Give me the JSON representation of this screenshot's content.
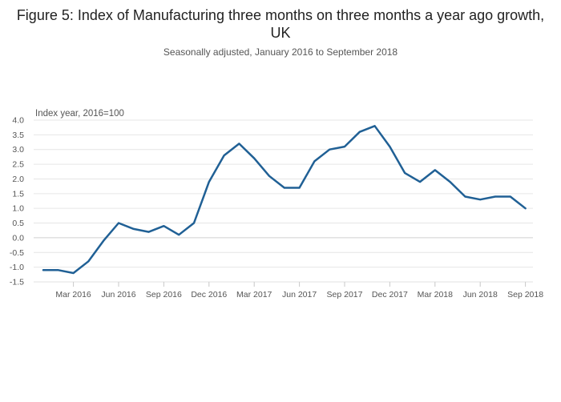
{
  "title": "Figure 5: Index of Manufacturing three months on three months a year ago growth, UK",
  "subtitle": "Seasonally adjusted, January 2016 to September 2018",
  "chart_data": {
    "type": "line",
    "title": "Figure 5: Index of Manufacturing three months on three months a year ago growth, UK",
    "subtitle": "Seasonally adjusted, January 2016 to September 2018",
    "xlabel": "",
    "ylabel": "Index year, 2016=100",
    "ylim": [
      -1.5,
      4.0
    ],
    "yticks": [
      "4.0",
      "3.5",
      "3.0",
      "2.5",
      "2.0",
      "1.5",
      "1.0",
      "0.5",
      "0.0",
      "-0.5",
      "-1.0",
      "-1.5"
    ],
    "ytick_values": [
      4.0,
      3.5,
      3.0,
      2.5,
      2.0,
      1.5,
      1.0,
      0.5,
      0.0,
      -0.5,
      -1.0,
      -1.5
    ],
    "xtick_labels": [
      "Mar 2016",
      "Jun 2016",
      "Sep 2016",
      "Dec 2016",
      "Mar 2017",
      "Jun 2017",
      "Sep 2017",
      "Dec 2017",
      "Mar 2018",
      "Jun 2018",
      "Sep 2018"
    ],
    "xtick_index": [
      2,
      5,
      8,
      11,
      14,
      17,
      20,
      23,
      26,
      29,
      32
    ],
    "grid": true,
    "legend": "none",
    "color": "#206095",
    "x": [
      "Jan 2016",
      "Feb 2016",
      "Mar 2016",
      "Apr 2016",
      "May 2016",
      "Jun 2016",
      "Jul 2016",
      "Aug 2016",
      "Sep 2016",
      "Oct 2016",
      "Nov 2016",
      "Dec 2016",
      "Jan 2017",
      "Feb 2017",
      "Mar 2017",
      "Apr 2017",
      "May 2017",
      "Jun 2017",
      "Jul 2017",
      "Aug 2017",
      "Sep 2017",
      "Oct 2017",
      "Nov 2017",
      "Dec 2017",
      "Jan 2018",
      "Feb 2018",
      "Mar 2018",
      "Apr 2018",
      "May 2018",
      "Jun 2018",
      "Jul 2018",
      "Aug 2018",
      "Sep 2018"
    ],
    "series": [
      {
        "name": "Index of Manufacturing growth",
        "values": [
          -1.1,
          -1.1,
          -1.2,
          -0.8,
          -0.1,
          0.5,
          0.3,
          0.2,
          0.4,
          0.1,
          0.5,
          1.9,
          2.8,
          3.2,
          2.7,
          2.1,
          1.7,
          1.7,
          2.6,
          3.0,
          3.1,
          3.6,
          3.8,
          3.1,
          2.2,
          1.9,
          2.3,
          1.9,
          1.4,
          1.3,
          1.4,
          1.4,
          1.0
        ]
      }
    ]
  }
}
